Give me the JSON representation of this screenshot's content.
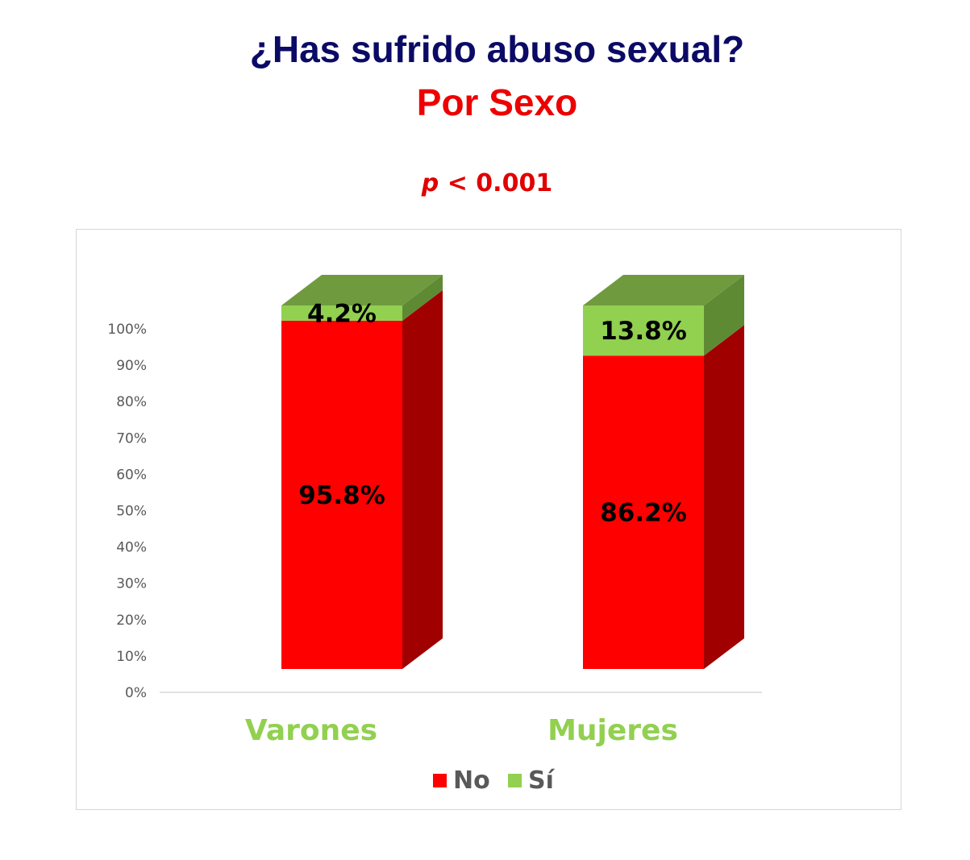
{
  "title": "¿Has sufrido abuso sexual?",
  "subtitle": "Por Sexo",
  "p_value": {
    "symbol": "p",
    "text": " < 0.001"
  },
  "colors": {
    "title": "#0b0b66",
    "subtitle": "#ee0000",
    "no_front": "#ff0000",
    "no_side": "#a00000",
    "si_front": "#92d050",
    "si_side": "#5f8a34",
    "si_top": "#6f9b3e",
    "category_label": "#92d050"
  },
  "chart_data": {
    "type": "bar",
    "stacked": true,
    "three_d": true,
    "categories": [
      "Varones",
      "Mujeres"
    ],
    "series": [
      {
        "name": "No",
        "values": [
          95.8,
          86.2
        ],
        "labels": [
          "95.8%",
          "86.2%"
        ]
      },
      {
        "name": "Sí",
        "values": [
          4.2,
          13.8
        ],
        "labels": [
          "4.2%",
          "13.8%"
        ]
      }
    ],
    "ylim": [
      0,
      100
    ],
    "yticks": [
      "0%",
      "10%",
      "20%",
      "30%",
      "40%",
      "50%",
      "60%",
      "70%",
      "80%",
      "90%",
      "100%"
    ],
    "grid": false,
    "legend": "bottom"
  }
}
